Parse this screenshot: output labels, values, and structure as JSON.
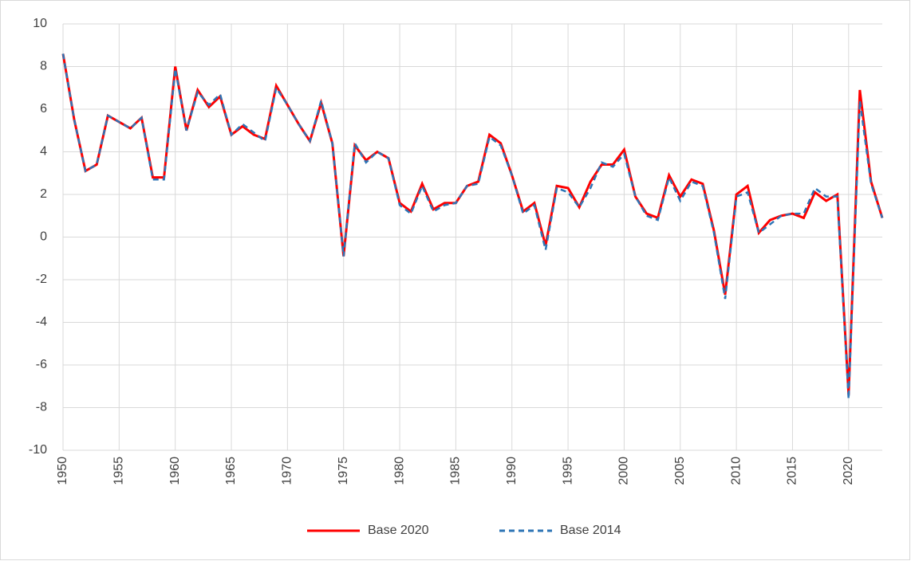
{
  "chart_data": {
    "type": "line",
    "x": [
      1950,
      1951,
      1952,
      1953,
      1954,
      1955,
      1956,
      1957,
      1958,
      1959,
      1960,
      1961,
      1962,
      1963,
      1964,
      1965,
      1966,
      1967,
      1968,
      1969,
      1970,
      1971,
      1972,
      1973,
      1974,
      1975,
      1976,
      1977,
      1978,
      1979,
      1980,
      1981,
      1982,
      1983,
      1984,
      1985,
      1986,
      1987,
      1988,
      1989,
      1990,
      1991,
      1992,
      1993,
      1994,
      1995,
      1996,
      1997,
      1998,
      1999,
      2000,
      2001,
      2002,
      2003,
      2004,
      2005,
      2006,
      2007,
      2008,
      2009,
      2010,
      2011,
      2012,
      2013,
      2014,
      2015,
      2016,
      2017,
      2018,
      2019,
      2020,
      2021,
      2022,
      2023
    ],
    "series": [
      {
        "name": "Base 2020",
        "color": "#ff0000",
        "dashed": false,
        "values": [
          8.6,
          5.5,
          3.1,
          3.4,
          5.7,
          5.4,
          5.1,
          5.6,
          2.8,
          2.8,
          8.0,
          5.0,
          6.9,
          6.1,
          6.6,
          4.8,
          5.2,
          4.8,
          4.6,
          7.1,
          6.2,
          5.3,
          4.5,
          6.3,
          4.4,
          -0.9,
          4.3,
          3.6,
          4.0,
          3.7,
          1.6,
          1.2,
          2.5,
          1.3,
          1.6,
          1.6,
          2.4,
          2.6,
          4.8,
          4.4,
          2.9,
          1.2,
          1.6,
          -0.4,
          2.4,
          2.3,
          1.4,
          2.6,
          3.4,
          3.4,
          4.1,
          1.9,
          1.1,
          0.9,
          2.9,
          1.9,
          2.7,
          2.5,
          0.3,
          -2.7,
          2.0,
          2.4,
          0.2,
          0.8,
          1.0,
          1.1,
          0.9,
          2.1,
          1.7,
          2.0,
          -7.4,
          6.9,
          2.6,
          0.9
        ]
      },
      {
        "name": "Base 2014",
        "color": "#2e75b6",
        "dashed": true,
        "values": [
          8.6,
          5.5,
          3.1,
          3.4,
          5.7,
          5.4,
          5.1,
          5.6,
          2.7,
          2.7,
          7.9,
          5.0,
          6.8,
          6.2,
          6.7,
          4.8,
          5.3,
          4.9,
          4.5,
          7.0,
          6.2,
          5.3,
          4.5,
          6.4,
          4.4,
          -0.9,
          4.4,
          3.5,
          4.0,
          3.7,
          1.5,
          1.1,
          2.4,
          1.2,
          1.5,
          1.6,
          2.4,
          2.5,
          4.7,
          4.3,
          2.9,
          1.1,
          1.5,
          -0.6,
          2.3,
          2.1,
          1.4,
          2.3,
          3.5,
          3.3,
          3.9,
          1.9,
          1.0,
          0.8,
          2.8,
          1.7,
          2.6,
          2.4,
          0.2,
          -2.9,
          1.9,
          2.1,
          0.2,
          0.6,
          1.0,
          1.1,
          1.1,
          2.3,
          1.9,
          1.9,
          -7.6,
          6.4,
          2.5,
          0.9
        ]
      }
    ],
    "xlim": [
      1950,
      2023
    ],
    "xticks": [
      1950,
      1955,
      1960,
      1965,
      1970,
      1975,
      1980,
      1985,
      1990,
      1995,
      2000,
      2005,
      2010,
      2015,
      2020
    ],
    "ylim": [
      -10,
      10
    ],
    "yticks": [
      -10,
      -8,
      -6,
      -4,
      -2,
      0,
      2,
      4,
      6,
      8,
      10
    ],
    "grid": true,
    "legend": "bottom"
  }
}
